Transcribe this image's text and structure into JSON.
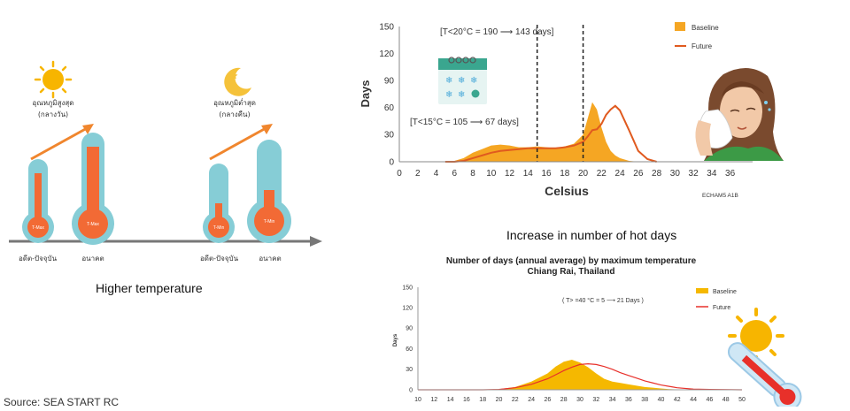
{
  "left_panel": {
    "day_label": "อุณหภูมิสูงสุด",
    "day_sub": "(กลางวัน)",
    "night_label": "อุณหภูมิต่ำสุด",
    "night_sub": "(กลางคืน)",
    "thermo_labels": [
      "T-Max",
      "T-Max",
      "T-Min",
      "T-Min"
    ],
    "axis_labels": [
      "อดีต-ปัจจุบัน",
      "อนาคต",
      "อดีต-ปัจจุบัน",
      "อนาคต"
    ],
    "caption": "Higher temperature",
    "colors": {
      "thermo_outer": "#86cdd6",
      "thermo_inner": "#f26a35",
      "arrow": "#f0862e",
      "axis": "#777777",
      "sun": "#f7b500",
      "moon": "#f5c23a"
    }
  },
  "source": "Source: SEA START RC",
  "chart_data": [
    {
      "type": "area",
      "title": "",
      "xlabel": "Celsius",
      "ylabel": "Days",
      "xlim": [
        0,
        37
      ],
      "ylim": [
        0,
        150
      ],
      "xticks": [
        0,
        2,
        4,
        6,
        8,
        10,
        12,
        14,
        16,
        18,
        20,
        22,
        24,
        26,
        28,
        30,
        32,
        34,
        36
      ],
      "yticks": [
        0,
        30,
        60,
        90,
        120,
        150
      ],
      "x": [
        5,
        6,
        7,
        8,
        9,
        10,
        11,
        12,
        13,
        14,
        15,
        16,
        17,
        18,
        19,
        20,
        20.5,
        21,
        21.5,
        22,
        22.5,
        23,
        23.5,
        24,
        25,
        26,
        27,
        28
      ],
      "series": [
        {
          "name": "Baseline",
          "type": "area",
          "color": "#f5a623",
          "values": [
            0,
            1,
            4,
            10,
            14,
            18,
            19,
            18,
            16,
            16,
            17,
            16,
            15,
            17,
            20,
            30,
            48,
            66,
            58,
            38,
            22,
            12,
            7,
            4,
            1,
            0,
            0,
            0
          ]
        },
        {
          "name": "Future",
          "type": "line",
          "color": "#e05a1f",
          "values": [
            0,
            0,
            1,
            4,
            7,
            10,
            12,
            13,
            14,
            15,
            15,
            15,
            15,
            16,
            18,
            22,
            28,
            35,
            36,
            42,
            52,
            58,
            62,
            57,
            35,
            12,
            3,
            0
          ]
        }
      ],
      "legend": {
        "position": "top-right",
        "entries": [
          "Baseline",
          "Future"
        ]
      },
      "annotations": [
        {
          "text": "[T<20°C = 190 ⟶ 143 days]",
          "x_line": 20
        },
        {
          "text": "[T<15°C = 105 ⟶ 67 days]",
          "x_line": 15
        }
      ],
      "credit": "ECHAM5 A1B",
      "caption": "Increase in number of hot days"
    },
    {
      "type": "area",
      "title": "Number of days (annual average) by maximum temperature",
      "subtitle": "Chiang Rai, Thailand",
      "xlabel": "",
      "ylabel": "Days",
      "xlim": [
        10,
        50
      ],
      "ylim": [
        0,
        150
      ],
      "xticks": [
        10,
        12,
        14,
        16,
        18,
        20,
        22,
        24,
        26,
        28,
        30,
        32,
        34,
        36,
        38,
        40,
        42,
        44,
        46,
        48,
        50
      ],
      "yticks": [
        0,
        30,
        60,
        90,
        120,
        150
      ],
      "x": [
        10,
        18,
        20,
        22,
        24,
        26,
        27,
        28,
        29,
        30,
        31,
        32,
        33,
        34,
        35,
        36,
        37,
        38,
        39,
        40,
        41,
        42,
        44,
        46,
        50
      ],
      "series": [
        {
          "name": "Baseline",
          "type": "area",
          "color": "#f5b800",
          "values": [
            0,
            0,
            1,
            4,
            12,
            24,
            34,
            41,
            44,
            40,
            33,
            24,
            16,
            12,
            10,
            8,
            6,
            4,
            3,
            2,
            1,
            0.5,
            0,
            0,
            0
          ]
        },
        {
          "name": "Future",
          "type": "line",
          "color": "#e8302a",
          "values": [
            0,
            0,
            0.5,
            3,
            8,
            16,
            22,
            28,
            33,
            37,
            38,
            37,
            34,
            30,
            25,
            21,
            17,
            13,
            10,
            7,
            5,
            3,
            1,
            0.5,
            0
          ]
        }
      ],
      "legend": {
        "position": "top-right",
        "entries": [
          "Baseline",
          "Future"
        ]
      },
      "annotations": [
        {
          "text": "( T> =40 °C = 5 ⟶ 21 Days )"
        }
      ]
    }
  ]
}
